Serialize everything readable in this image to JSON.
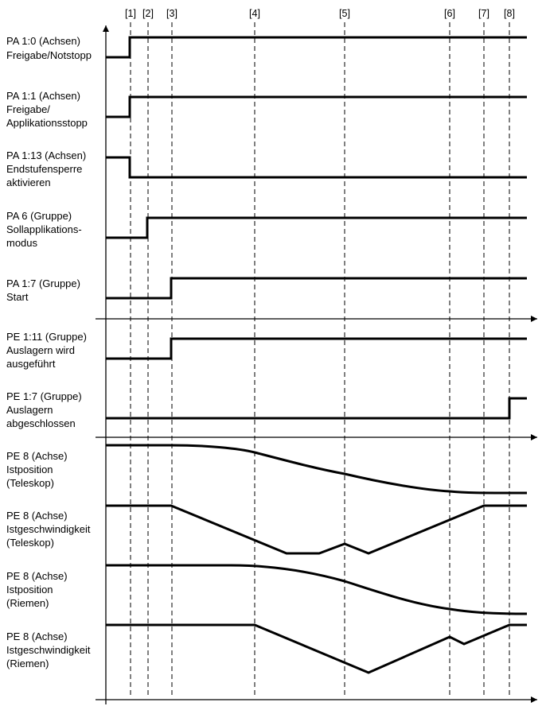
{
  "markers": [
    "[1]",
    "[2]",
    "[3]",
    "[4]",
    "[5]",
    "[6]",
    "[7]",
    "[8]"
  ],
  "signals": [
    {
      "lines": [
        "PA 1:0 (Achsen)",
        "Freigabe/Notstopp"
      ]
    },
    {
      "lines": [
        "PA 1:1 (Achsen)",
        "Freigabe/",
        "Applikationsstopp"
      ]
    },
    {
      "lines": [
        "PA 1:13 (Achsen)",
        "Endstufensperre",
        "aktivieren"
      ]
    },
    {
      "lines": [
        "PA 6 (Gruppe)",
        "Sollapplikations-",
        "modus"
      ]
    },
    {
      "lines": [
        "PA 1:7 (Gruppe)",
        "Start"
      ]
    },
    {
      "lines": [
        "PE 1:11 (Gruppe)",
        "Auslagern wird",
        "ausgeführt"
      ]
    },
    {
      "lines": [
        "PE 1:7 (Gruppe)",
        "Auslagern",
        "abgeschlossen"
      ]
    },
    {
      "lines": [
        "PE 8 (Achse)",
        "Istposition",
        "(Teleskop)"
      ]
    },
    {
      "lines": [
        "PE 8 (Achse)",
        "Istgeschwindigkeit",
        "(Teleskop)"
      ]
    },
    {
      "lines": [
        "PE 8 (Achse)",
        "Istposition",
        "(Riemen)"
      ]
    },
    {
      "lines": [
        "PE 8 (Achse)",
        "Istgeschwindigkeit",
        "(Riemen)"
      ]
    }
  ]
}
